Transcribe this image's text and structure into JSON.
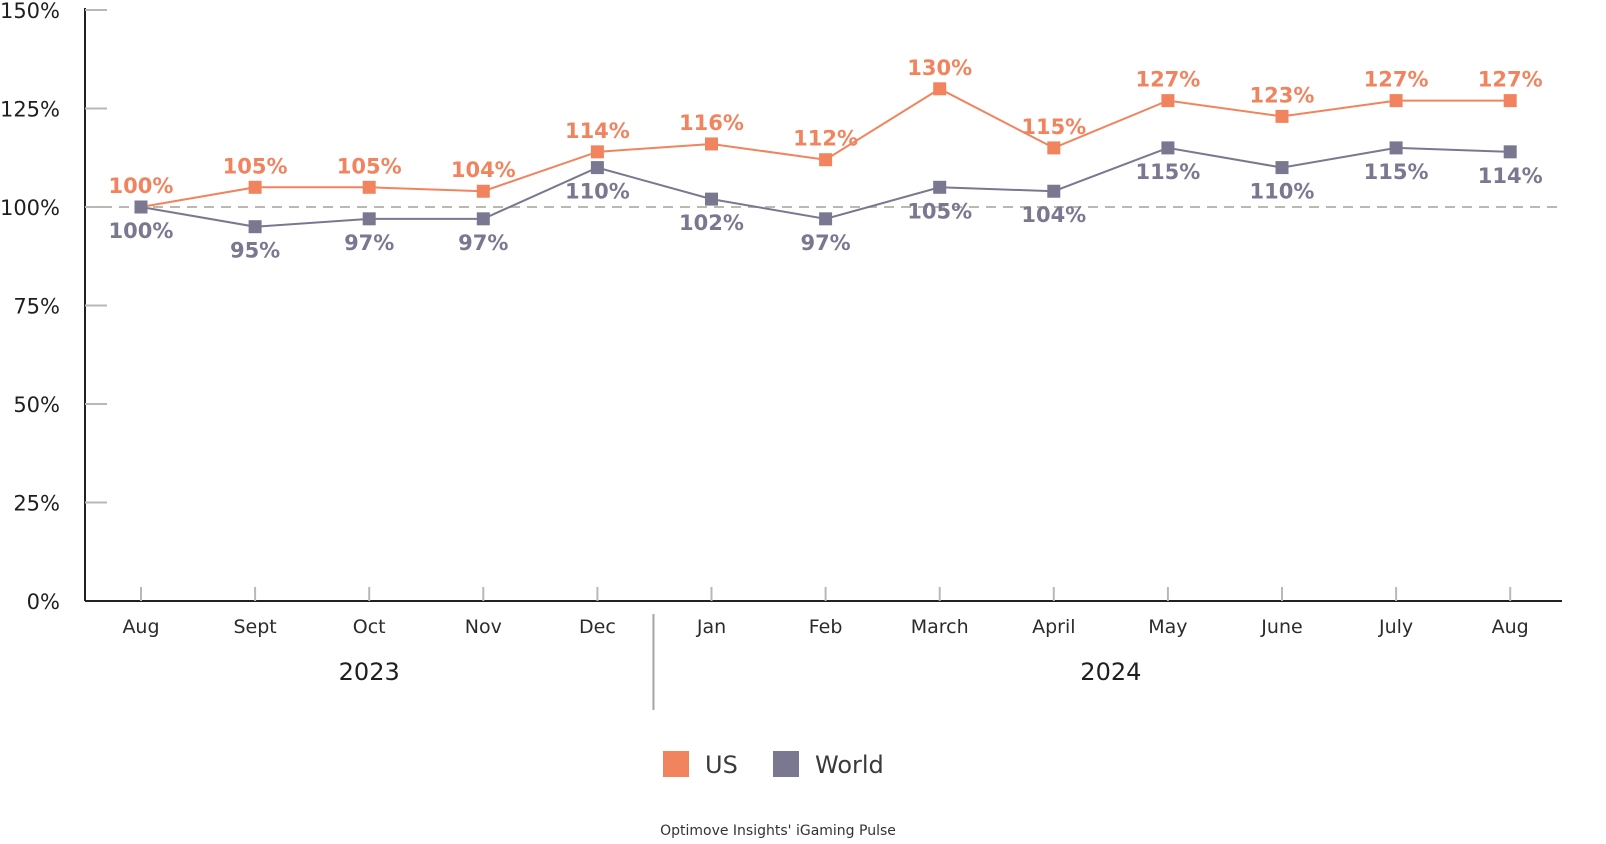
{
  "chart_data": {
    "type": "line",
    "categories": [
      "Aug",
      "Sept",
      "Oct",
      "Nov",
      "Dec",
      "Jan",
      "Feb",
      "March",
      "April",
      "May",
      "June",
      "July",
      "Aug"
    ],
    "year_groups": [
      {
        "label": "2023",
        "from": 0,
        "to": 4
      },
      {
        "label": "2024",
        "from": 5,
        "to": 12
      }
    ],
    "series": [
      {
        "name": "US",
        "color": "#F1845E",
        "values": [
          100,
          105,
          105,
          104,
          114,
          116,
          112,
          130,
          115,
          127,
          123,
          127,
          127
        ],
        "labels": [
          "100%",
          "105%",
          "105%",
          "104%",
          "114%",
          "116%",
          "112%",
          "130%",
          "115%",
          "127%",
          "123%",
          "127%",
          "127%"
        ]
      },
      {
        "name": "World",
        "color": "#7A7890",
        "values": [
          100,
          95,
          97,
          97,
          110,
          102,
          97,
          105,
          104,
          115,
          110,
          115,
          114
        ],
        "labels": [
          "100%",
          "95%",
          "97%",
          "97%",
          "110%",
          "102%",
          "97%",
          "105%",
          "104%",
          "115%",
          "110%",
          "115%",
          "114%"
        ]
      }
    ],
    "y_ticks": [
      "0%",
      "25%",
      "50%",
      "75%",
      "100%",
      "125%",
      "150%"
    ],
    "ylim": [
      0,
      150
    ],
    "reference_line": 100,
    "reference_color": "#BDB7B1",
    "axis_color": "#222222",
    "tick_color": "#BDB7B1",
    "legend_placement": "bottom-center",
    "grid": false,
    "title": "",
    "xlabel": "",
    "ylabel": "",
    "source": "Optimove Insights' iGaming Pulse"
  }
}
